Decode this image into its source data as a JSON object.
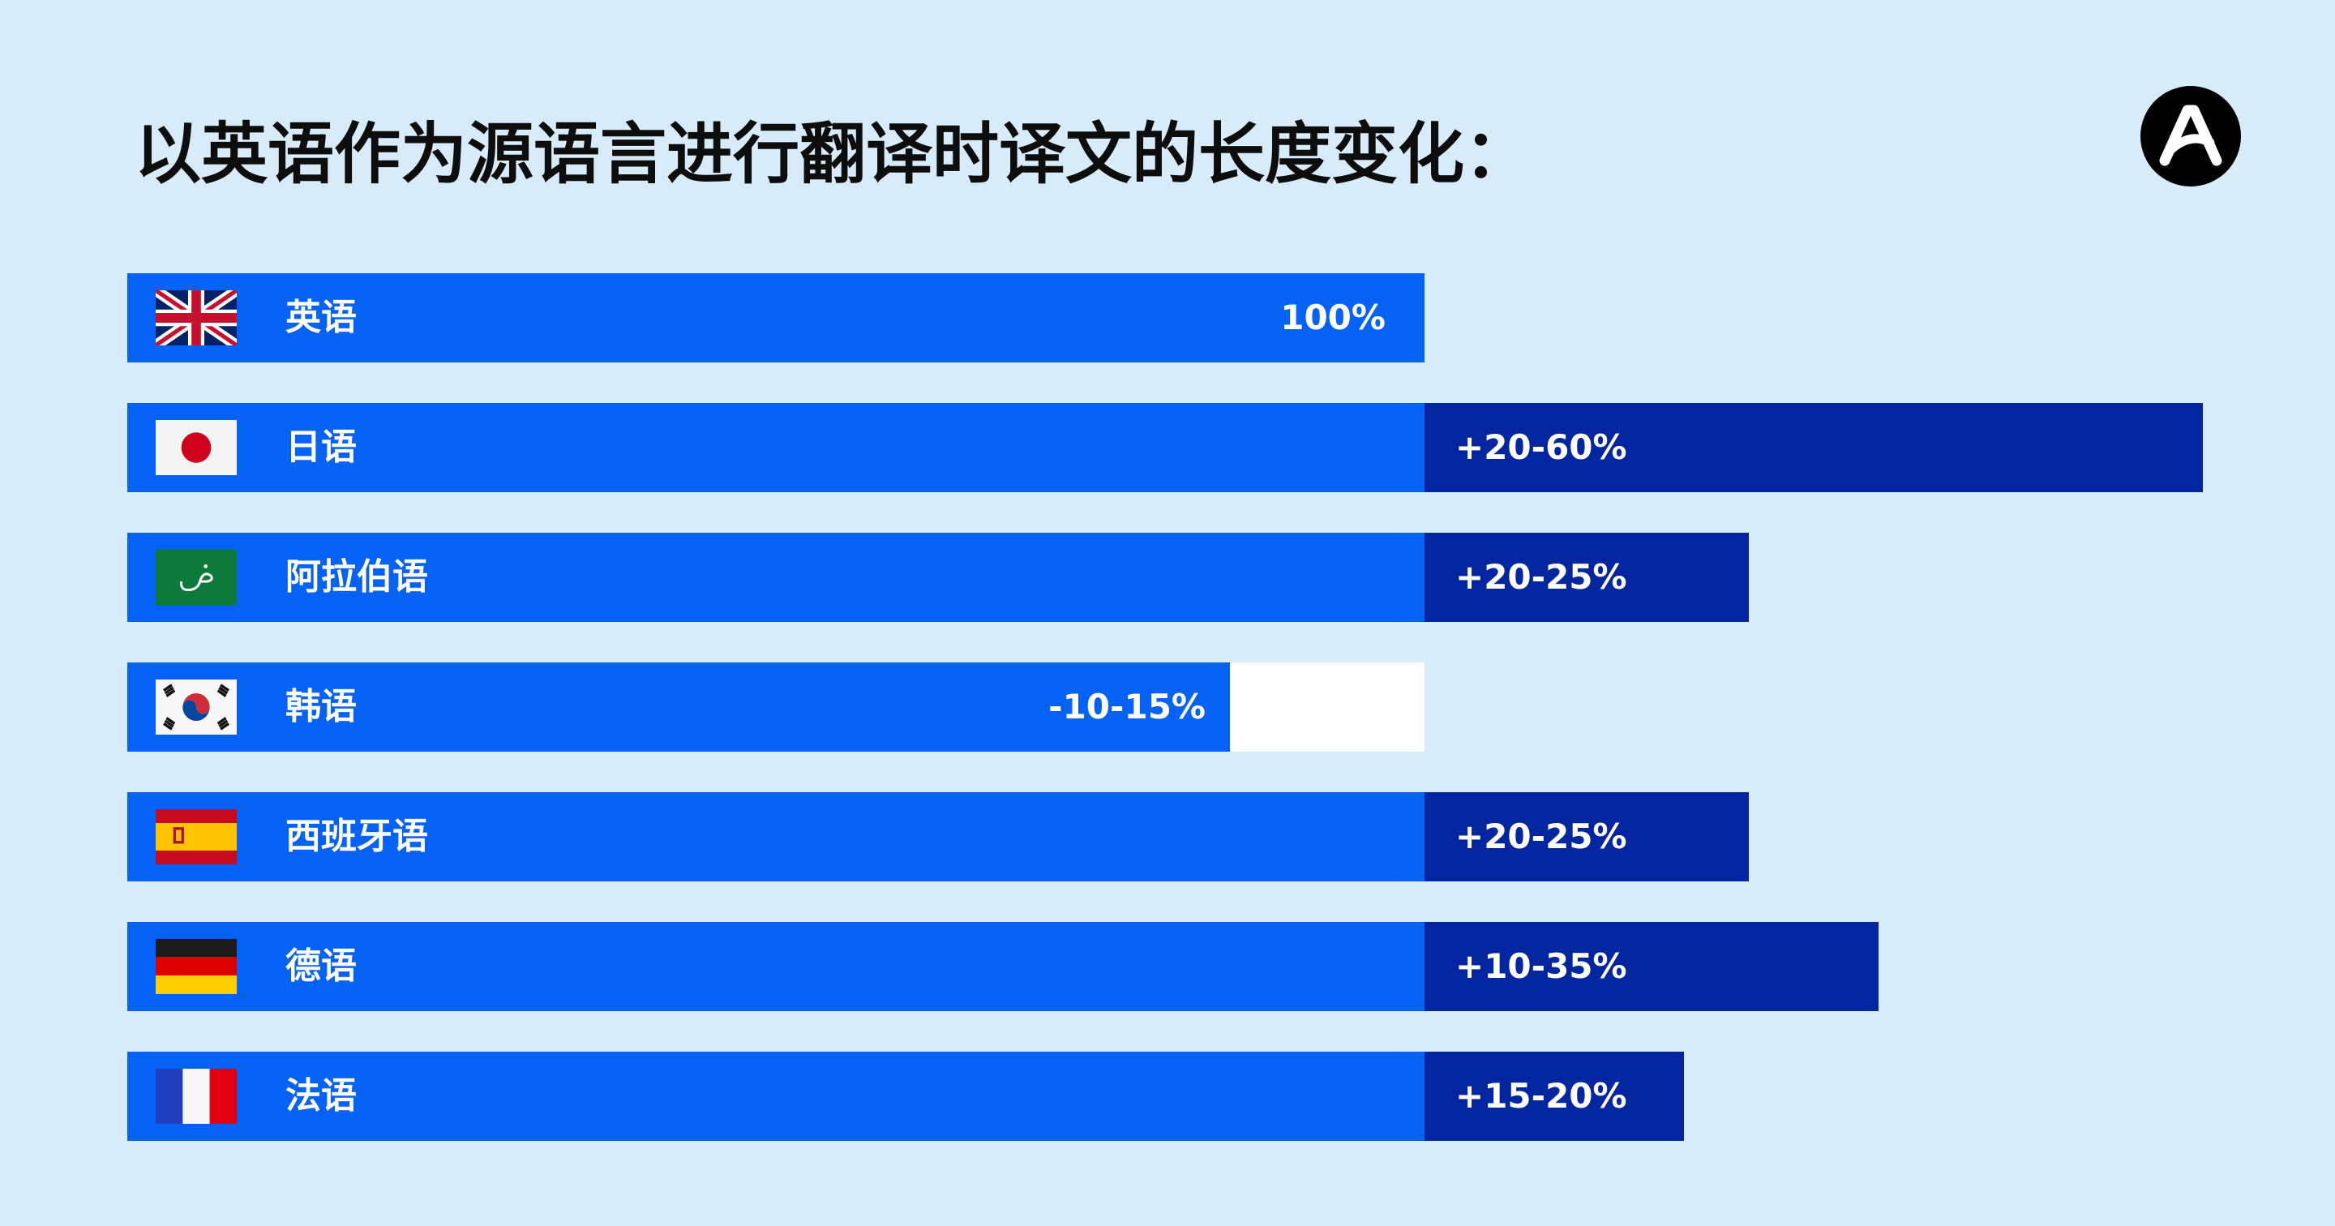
{
  "title": "以英语作为源语言进行翻译时译文的长度变化：",
  "logo_icon": "brand-a-logo-icon",
  "colors": {
    "background": "#d8ebf8",
    "base_bar": "#0562f5",
    "increase_bar": "#0325a0",
    "reduction_area": "#ffffff"
  },
  "chart_data": {
    "type": "bar",
    "orientation": "horizontal",
    "title": "以英语作为源语言进行翻译时译文的长度变化：",
    "baseline_label": "100%",
    "rows": [
      {
        "language": "英语",
        "flag": "uk-flag-icon",
        "label": "100%",
        "range_percent": [
          0,
          0
        ]
      },
      {
        "language": "日语",
        "flag": "japan-flag-icon",
        "label": "+20-60%",
        "range_percent": [
          20,
          60
        ]
      },
      {
        "language": "阿拉伯语",
        "flag": "arabic-flag-icon",
        "label": "+20-25%",
        "range_percent": [
          20,
          25
        ]
      },
      {
        "language": "韩语",
        "flag": "korea-flag-icon",
        "label": "-10-15%",
        "range_percent": [
          -10,
          -15
        ]
      },
      {
        "language": "西班牙语",
        "flag": "spain-flag-icon",
        "label": "+20-25%",
        "range_percent": [
          20,
          25
        ]
      },
      {
        "language": "德语",
        "flag": "germany-flag-icon",
        "label": "+10-35%",
        "range_percent": [
          10,
          35
        ]
      },
      {
        "language": "法语",
        "flag": "france-flag-icon",
        "label": "+15-20%",
        "range_percent": [
          15,
          20
        ]
      }
    ]
  }
}
